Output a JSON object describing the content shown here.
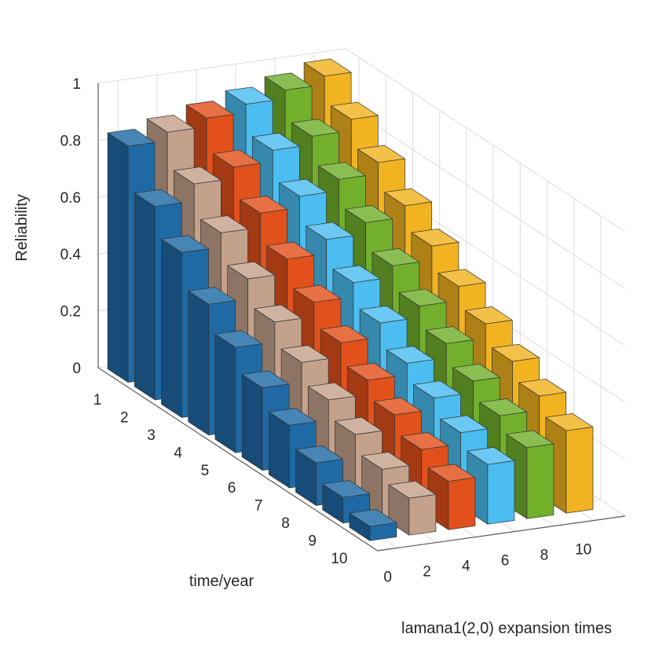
{
  "chart_data": {
    "type": "bar3d",
    "title": "",
    "xlabel": "time/year",
    "ylabel": "lamana1(2,0) expansion times",
    "zlabel": "Reliability",
    "zlim": [
      0,
      1
    ],
    "z_ticks": [
      "0",
      "0.2",
      "0.4",
      "0.6",
      "0.8",
      "1"
    ],
    "x_ticks": [
      "1",
      "2",
      "3",
      "4",
      "5",
      "6",
      "7",
      "8",
      "9",
      "10"
    ],
    "y_ticks": [
      "0",
      "2",
      "4",
      "6",
      "8",
      "10"
    ],
    "grid": true,
    "series": [
      {
        "name": "0",
        "color": "#1f6aa5",
        "values": [
          0.83,
          0.68,
          0.58,
          0.46,
          0.37,
          0.29,
          0.22,
          0.15,
          0.09,
          0.05
        ]
      },
      {
        "name": "2",
        "color": "#c4a18b",
        "values": [
          0.86,
          0.74,
          0.63,
          0.53,
          0.44,
          0.36,
          0.29,
          0.23,
          0.17,
          0.13
        ]
      },
      {
        "name": "4",
        "color": "#e2511b",
        "values": [
          0.89,
          0.78,
          0.68,
          0.58,
          0.49,
          0.41,
          0.34,
          0.28,
          0.22,
          0.17
        ]
      },
      {
        "name": "6",
        "color": "#4bbdf0",
        "values": [
          0.92,
          0.82,
          0.72,
          0.63,
          0.54,
          0.46,
          0.38,
          0.32,
          0.26,
          0.21
        ]
      },
      {
        "name": "8",
        "color": "#72b02c",
        "values": [
          0.95,
          0.85,
          0.76,
          0.67,
          0.58,
          0.5,
          0.43,
          0.36,
          0.3,
          0.25
        ]
      },
      {
        "name": "10",
        "color": "#f1b320",
        "values": [
          0.98,
          0.89,
          0.8,
          0.71,
          0.63,
          0.55,
          0.48,
          0.41,
          0.35,
          0.29
        ]
      }
    ]
  }
}
